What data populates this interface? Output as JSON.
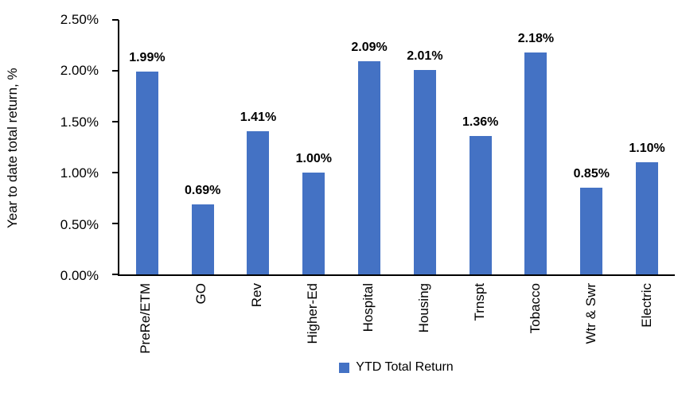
{
  "chart_data": {
    "type": "bar",
    "title": "",
    "xlabel": "",
    "ylabel": "Year to date total return, %",
    "categories": [
      "PreRe/ETM",
      "GO",
      "Rev",
      "Higher-Ed",
      "Hospital",
      "Housing",
      "Trnspt",
      "Tobacco",
      "Wtr & Swr",
      "Electric"
    ],
    "series": [
      {
        "name": "YTD Total Return",
        "values": [
          1.99,
          0.69,
          1.41,
          1.0,
          2.09,
          2.01,
          1.36,
          2.18,
          0.85,
          1.1
        ]
      }
    ],
    "value_labels": [
      "1.99%",
      "0.69%",
      "1.41%",
      "1.00%",
      "2.09%",
      "2.01%",
      "1.36%",
      "2.18%",
      "0.85%",
      "1.10%"
    ],
    "ylim": [
      0,
      2.5
    ],
    "ytick_values": [
      0,
      0.5,
      1.0,
      1.5,
      2.0,
      2.5
    ],
    "ytick_labels": [
      "0.00%",
      "0.50%",
      "1.00%",
      "1.50%",
      "2.00%",
      "2.50%"
    ],
    "grid": false,
    "legend_position": "bottom",
    "bar_color": "#4472C4",
    "axis_color": "#000000",
    "legend": {
      "label": "YTD Total Return",
      "swatch_color": "#4472C4"
    }
  }
}
